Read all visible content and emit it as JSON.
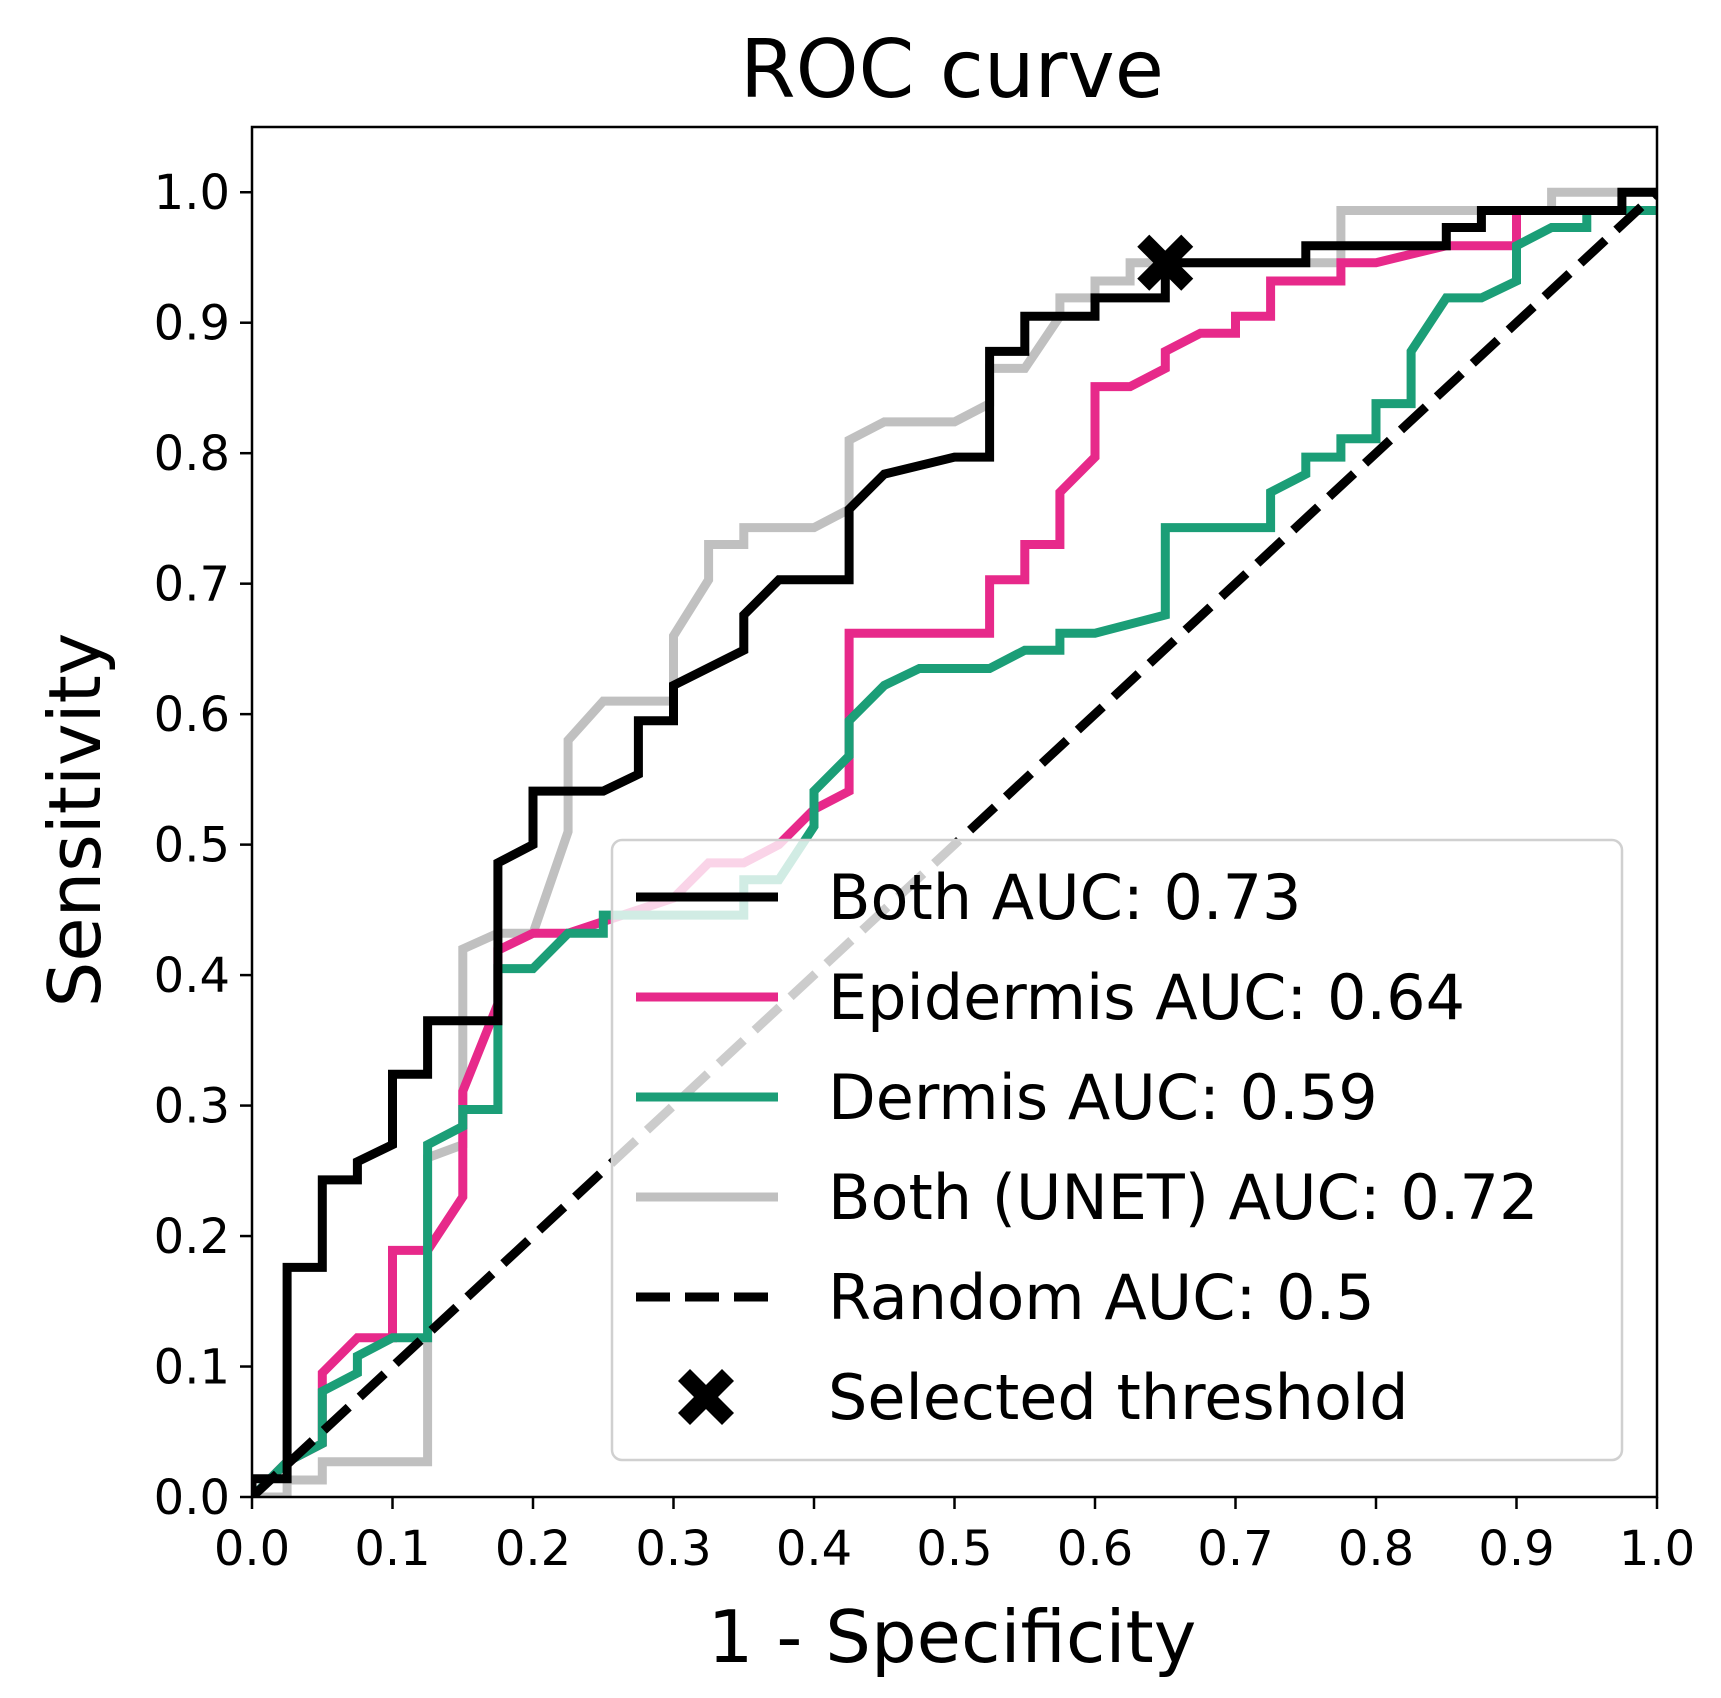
{
  "chart_data": {
    "type": "line",
    "title": "ROC curve",
    "xlabel": "1 - Specificity",
    "ylabel": "Sensitivity",
    "xlim": [
      0.0,
      1.0
    ],
    "ylim": [
      0.0,
      1.05
    ],
    "xticks": [
      "0.0",
      "0.1",
      "0.2",
      "0.3",
      "0.4",
      "0.5",
      "0.6",
      "0.7",
      "0.8",
      "0.9",
      "1.0"
    ],
    "yticks": [
      "0.0",
      "0.1",
      "0.2",
      "0.3",
      "0.4",
      "0.5",
      "0.6",
      "0.7",
      "0.8",
      "0.9",
      "1.0"
    ],
    "grid": false,
    "legend_position": "lower-right",
    "series": [
      {
        "name": "Both (UNET) AUC: 0.72",
        "color": "#c0c0c0",
        "style": "solid",
        "points": [
          [
            0,
            0
          ],
          [
            0.025,
            0
          ],
          [
            0.025,
            0.013
          ],
          [
            0.05,
            0.013
          ],
          [
            0.05,
            0.027
          ],
          [
            0.125,
            0.027
          ],
          [
            0.125,
            0.26
          ],
          [
            0.15,
            0.27
          ],
          [
            0.15,
            0.42
          ],
          [
            0.175,
            0.432
          ],
          [
            0.2,
            0.432
          ],
          [
            0.225,
            0.51
          ],
          [
            0.225,
            0.58
          ],
          [
            0.25,
            0.61
          ],
          [
            0.3,
            0.61
          ],
          [
            0.3,
            0.66
          ],
          [
            0.325,
            0.703
          ],
          [
            0.325,
            0.73
          ],
          [
            0.35,
            0.73
          ],
          [
            0.35,
            0.743
          ],
          [
            0.4,
            0.743
          ],
          [
            0.425,
            0.757
          ],
          [
            0.425,
            0.81
          ],
          [
            0.45,
            0.824
          ],
          [
            0.5,
            0.824
          ],
          [
            0.525,
            0.838
          ],
          [
            0.525,
            0.865
          ],
          [
            0.55,
            0.865
          ],
          [
            0.575,
            0.905
          ],
          [
            0.575,
            0.919
          ],
          [
            0.6,
            0.919
          ],
          [
            0.6,
            0.932
          ],
          [
            0.625,
            0.932
          ],
          [
            0.625,
            0.946
          ],
          [
            0.775,
            0.946
          ],
          [
            0.775,
            0.986
          ],
          [
            0.925,
            0.986
          ],
          [
            0.925,
            1.0
          ],
          [
            1.0,
            1.0
          ]
        ]
      },
      {
        "name": "Epidermis AUC: 0.64",
        "color": "#e7298a",
        "style": "solid",
        "points": [
          [
            0,
            0
          ],
          [
            0.025,
            0.027
          ],
          [
            0.05,
            0.041
          ],
          [
            0.05,
            0.095
          ],
          [
            0.075,
            0.122
          ],
          [
            0.1,
            0.122
          ],
          [
            0.1,
            0.189
          ],
          [
            0.125,
            0.189
          ],
          [
            0.15,
            0.23
          ],
          [
            0.15,
            0.311
          ],
          [
            0.175,
            0.378
          ],
          [
            0.175,
            0.419
          ],
          [
            0.2,
            0.432
          ],
          [
            0.225,
            0.432
          ],
          [
            0.3,
            0.459
          ],
          [
            0.325,
            0.486
          ],
          [
            0.35,
            0.486
          ],
          [
            0.375,
            0.5
          ],
          [
            0.4,
            0.527
          ],
          [
            0.425,
            0.541
          ],
          [
            0.425,
            0.662
          ],
          [
            0.525,
            0.662
          ],
          [
            0.525,
            0.703
          ],
          [
            0.55,
            0.703
          ],
          [
            0.55,
            0.73
          ],
          [
            0.575,
            0.73
          ],
          [
            0.575,
            0.77
          ],
          [
            0.6,
            0.797
          ],
          [
            0.6,
            0.851
          ],
          [
            0.625,
            0.851
          ],
          [
            0.65,
            0.865
          ],
          [
            0.65,
            0.878
          ],
          [
            0.675,
            0.892
          ],
          [
            0.7,
            0.892
          ],
          [
            0.7,
            0.905
          ],
          [
            0.725,
            0.905
          ],
          [
            0.725,
            0.932
          ],
          [
            0.775,
            0.932
          ],
          [
            0.775,
            0.946
          ],
          [
            0.8,
            0.946
          ],
          [
            0.85,
            0.959
          ],
          [
            0.9,
            0.959
          ],
          [
            0.9,
            0.986
          ],
          [
            1.0,
            0.986
          ]
        ]
      },
      {
        "name": "Dermis AUC: 0.59",
        "color": "#1b9e77",
        "style": "solid",
        "points": [
          [
            0,
            0
          ],
          [
            0.025,
            0.027
          ],
          [
            0.05,
            0.041
          ],
          [
            0.05,
            0.081
          ],
          [
            0.075,
            0.095
          ],
          [
            0.075,
            0.108
          ],
          [
            0.1,
            0.122
          ],
          [
            0.125,
            0.122
          ],
          [
            0.125,
            0.27
          ],
          [
            0.15,
            0.284
          ],
          [
            0.15,
            0.297
          ],
          [
            0.175,
            0.297
          ],
          [
            0.175,
            0.405
          ],
          [
            0.2,
            0.405
          ],
          [
            0.225,
            0.432
          ],
          [
            0.25,
            0.432
          ],
          [
            0.25,
            0.446
          ],
          [
            0.35,
            0.446
          ],
          [
            0.35,
            0.473
          ],
          [
            0.375,
            0.473
          ],
          [
            0.4,
            0.514
          ],
          [
            0.4,
            0.541
          ],
          [
            0.425,
            0.568
          ],
          [
            0.425,
            0.595
          ],
          [
            0.45,
            0.622
          ],
          [
            0.475,
            0.635
          ],
          [
            0.525,
            0.635
          ],
          [
            0.55,
            0.649
          ],
          [
            0.575,
            0.649
          ],
          [
            0.575,
            0.662
          ],
          [
            0.6,
            0.662
          ],
          [
            0.65,
            0.676
          ],
          [
            0.65,
            0.743
          ],
          [
            0.725,
            0.743
          ],
          [
            0.725,
            0.77
          ],
          [
            0.75,
            0.784
          ],
          [
            0.75,
            0.797
          ],
          [
            0.775,
            0.797
          ],
          [
            0.775,
            0.811
          ],
          [
            0.8,
            0.811
          ],
          [
            0.8,
            0.838
          ],
          [
            0.825,
            0.838
          ],
          [
            0.825,
            0.878
          ],
          [
            0.85,
            0.919
          ],
          [
            0.875,
            0.919
          ],
          [
            0.9,
            0.932
          ],
          [
            0.9,
            0.959
          ],
          [
            0.925,
            0.973
          ],
          [
            0.95,
            0.973
          ],
          [
            0.95,
            0.986
          ],
          [
            1.0,
            0.986
          ]
        ]
      },
      {
        "name": "Both AUC: 0.73",
        "color": "#000000",
        "style": "solid",
        "points": [
          [
            0,
            0
          ],
          [
            0,
            0.014
          ],
          [
            0.025,
            0.014
          ],
          [
            0.025,
            0.176
          ],
          [
            0.05,
            0.176
          ],
          [
            0.05,
            0.243
          ],
          [
            0.075,
            0.243
          ],
          [
            0.075,
            0.257
          ],
          [
            0.1,
            0.27
          ],
          [
            0.1,
            0.324
          ],
          [
            0.125,
            0.324
          ],
          [
            0.125,
            0.365
          ],
          [
            0.175,
            0.365
          ],
          [
            0.175,
            0.486
          ],
          [
            0.2,
            0.5
          ],
          [
            0.2,
            0.541
          ],
          [
            0.25,
            0.541
          ],
          [
            0.275,
            0.554
          ],
          [
            0.275,
            0.595
          ],
          [
            0.3,
            0.595
          ],
          [
            0.3,
            0.622
          ],
          [
            0.35,
            0.649
          ],
          [
            0.35,
            0.676
          ],
          [
            0.375,
            0.703
          ],
          [
            0.425,
            0.703
          ],
          [
            0.425,
            0.757
          ],
          [
            0.45,
            0.784
          ],
          [
            0.5,
            0.797
          ],
          [
            0.525,
            0.797
          ],
          [
            0.525,
            0.878
          ],
          [
            0.55,
            0.878
          ],
          [
            0.55,
            0.905
          ],
          [
            0.6,
            0.905
          ],
          [
            0.6,
            0.919
          ],
          [
            0.65,
            0.919
          ],
          [
            0.65,
            0.946
          ],
          [
            0.75,
            0.946
          ],
          [
            0.75,
            0.959
          ],
          [
            0.85,
            0.959
          ],
          [
            0.85,
            0.973
          ],
          [
            0.875,
            0.973
          ],
          [
            0.875,
            0.986
          ],
          [
            0.975,
            0.986
          ],
          [
            0.975,
            1.0
          ],
          [
            1.0,
            1.0
          ]
        ]
      },
      {
        "name": "Random AUC: 0.5",
        "color": "#000000",
        "style": "dashed",
        "points": [
          [
            0,
            0
          ],
          [
            1,
            1
          ]
        ]
      }
    ],
    "marker": {
      "name": "Selected threshold",
      "x": 0.65,
      "y": 0.946,
      "symbol": "X",
      "color": "#000000"
    },
    "legend": [
      {
        "label": "Both AUC: 0.73",
        "color": "#000000",
        "style": "solid"
      },
      {
        "label": "Epidermis AUC: 0.64",
        "color": "#e7298a",
        "style": "solid"
      },
      {
        "label": "Dermis AUC: 0.59",
        "color": "#1b9e77",
        "style": "solid"
      },
      {
        "label": "Both (UNET) AUC: 0.72",
        "color": "#c0c0c0",
        "style": "solid"
      },
      {
        "label": "Random AUC: 0.5",
        "color": "#000000",
        "style": "dashed"
      },
      {
        "label": "Selected threshold",
        "color": "#000000",
        "style": "marker"
      }
    ]
  }
}
